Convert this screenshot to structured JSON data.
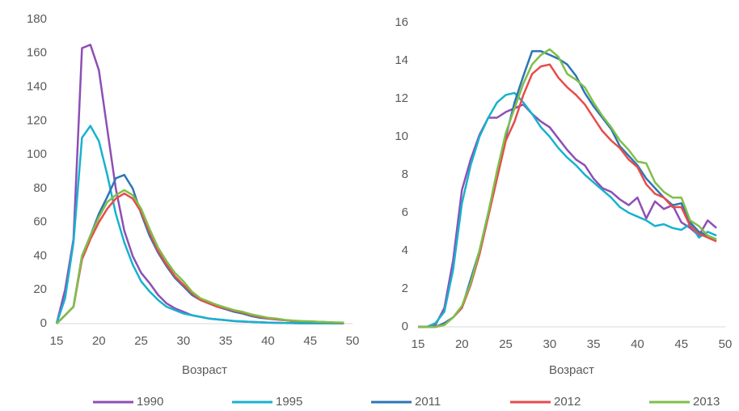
{
  "chart_data": [
    {
      "type": "line",
      "x_label": "Возраст",
      "x": [
        15,
        16,
        17,
        18,
        19,
        20,
        21,
        22,
        23,
        24,
        25,
        26,
        27,
        28,
        29,
        30,
        31,
        32,
        33,
        34,
        35,
        36,
        37,
        38,
        39,
        40,
        41,
        42,
        43,
        44,
        45,
        46,
        47,
        48,
        49
      ],
      "xlim": [
        15,
        50
      ],
      "xticks": [
        15,
        20,
        25,
        30,
        35,
        40,
        45,
        50
      ],
      "ylim": [
        0,
        180
      ],
      "yticks": [
        0,
        20,
        40,
        60,
        80,
        100,
        120,
        140,
        160,
        180
      ],
      "grid": false,
      "series": [
        {
          "name": "1990",
          "color": "#8e4fb5",
          "values": [
            0,
            20,
            50,
            163,
            165,
            150,
            115,
            80,
            55,
            40,
            30,
            24,
            17,
            12,
            9,
            7,
            5,
            4,
            3,
            2.5,
            2,
            1.5,
            1.2,
            1,
            0.8,
            0.6,
            0.5,
            0.4,
            0.3,
            0.2,
            0.2,
            0.1,
            0.1,
            0.1,
            0.1
          ]
        },
        {
          "name": "1995",
          "color": "#17b2ce",
          "values": [
            0,
            15,
            48,
            110,
            117,
            108,
            88,
            65,
            48,
            35,
            25,
            19,
            14,
            10,
            8,
            6,
            5,
            4,
            3,
            2.5,
            2,
            1.6,
            1.3,
            1,
            0.8,
            0.6,
            0.5,
            0.4,
            0.3,
            0.2,
            0.2,
            0.1,
            0.1,
            0.1,
            0.1
          ]
        },
        {
          "name": "2011",
          "color": "#2e75b6",
          "values": [
            0,
            5,
            10,
            40,
            52,
            65,
            75,
            86,
            88,
            80,
            65,
            52,
            42,
            34,
            27,
            22,
            17,
            14,
            12,
            10,
            8.5,
            7,
            6,
            4.5,
            3.5,
            3,
            2.5,
            2,
            1.5,
            1.3,
            1.2,
            1,
            0.8,
            0.5,
            0.4
          ]
        },
        {
          "name": "2012",
          "color": "#e84b4b",
          "values": [
            0,
            5,
            10,
            38,
            50,
            60,
            68,
            74,
            77,
            74,
            66,
            54,
            43,
            35,
            28,
            23,
            18,
            14,
            12,
            10,
            9,
            7.5,
            6.5,
            5,
            4,
            3,
            2.5,
            2,
            1.5,
            1.4,
            1.3,
            1,
            0.8,
            0.6,
            0.5
          ]
        },
        {
          "name": "2013",
          "color": "#7fbf4a",
          "values": [
            0,
            5,
            10,
            40,
            52,
            63,
            72,
            76,
            79,
            76,
            68,
            56,
            45,
            37,
            30,
            25,
            19,
            15,
            13,
            11,
            9.5,
            8,
            7,
            5.5,
            4.5,
            3.5,
            3,
            2.2,
            1.8,
            1.5,
            1.4,
            1.1,
            0.9,
            0.7,
            0.6
          ]
        }
      ]
    },
    {
      "type": "line",
      "x_label": "Возраст",
      "x": [
        15,
        16,
        17,
        18,
        19,
        20,
        21,
        22,
        23,
        24,
        25,
        26,
        27,
        28,
        29,
        30,
        31,
        32,
        33,
        34,
        35,
        36,
        37,
        38,
        39,
        40,
        41,
        42,
        43,
        44,
        45,
        46,
        47,
        48,
        49
      ],
      "xlim": [
        15,
        50
      ],
      "xticks": [
        15,
        20,
        25,
        30,
        35,
        40,
        45,
        50
      ],
      "ylim": [
        0,
        16
      ],
      "yticks": [
        0,
        2,
        4,
        6,
        8,
        10,
        12,
        14,
        16
      ],
      "grid": false,
      "series": [
        {
          "color": "#8e4fb5",
          "values": [
            0,
            0,
            0.1,
            1,
            3.5,
            7.2,
            8.8,
            10.1,
            11,
            11,
            11.3,
            11.5,
            11.7,
            11.2,
            10.8,
            10.5,
            9.9,
            9.3,
            8.8,
            8.5,
            7.8,
            7.3,
            7.1,
            6.7,
            6.4,
            6.8,
            5.7,
            6.6,
            6.2,
            6.4,
            5.5,
            5.2,
            4.8,
            5.6,
            5.2
          ]
        },
        {
          "color": "#17b2ce",
          "values": [
            0,
            0,
            0.2,
            0.8,
            3,
            6.5,
            8.5,
            10,
            11,
            11.8,
            12.2,
            12.3,
            11.8,
            11.2,
            10.5,
            10,
            9.4,
            8.9,
            8.5,
            8,
            7.6,
            7.2,
            6.8,
            6.3,
            6,
            5.8,
            5.6,
            5.3,
            5.4,
            5.2,
            5.1,
            5.4,
            4.7,
            5,
            4.8
          ]
        },
        {
          "color": "#2e75b6",
          "values": [
            0,
            0,
            0,
            0.2,
            0.5,
            1,
            2.5,
            4,
            6,
            8,
            10,
            11.8,
            13.2,
            14.5,
            14.5,
            14.3,
            14.1,
            13.8,
            13.2,
            12.3,
            11.6,
            11,
            10.4,
            9.5,
            9,
            8.5,
            7.8,
            7.3,
            6.8,
            6.4,
            6.5,
            5.5,
            5,
            4.8,
            4.6
          ]
        },
        {
          "color": "#e84b4b",
          "values": [
            0,
            0,
            0,
            0.1,
            0.5,
            1,
            2.2,
            3.8,
            5.8,
            7.8,
            9.8,
            10.8,
            12.2,
            13.3,
            13.7,
            13.8,
            13.1,
            12.6,
            12.2,
            11.7,
            11,
            10.3,
            9.8,
            9.4,
            8.8,
            8.4,
            7.5,
            7,
            6.8,
            6.3,
            6.3,
            5.3,
            4.9,
            4.7,
            4.5
          ]
        },
        {
          "color": "#7fbf4a",
          "values": [
            0,
            0,
            0,
            0.1,
            0.5,
            1.1,
            2.3,
            4,
            6,
            8.2,
            10.2,
            11.5,
            12.8,
            13.8,
            14.3,
            14.6,
            14.2,
            13.3,
            13,
            12.6,
            11.8,
            11.1,
            10.5,
            9.8,
            9.3,
            8.7,
            8.6,
            7.6,
            7.1,
            6.8,
            6.8,
            5.6,
            5.3,
            4.8,
            4.6
          ]
        }
      ]
    }
  ]
}
